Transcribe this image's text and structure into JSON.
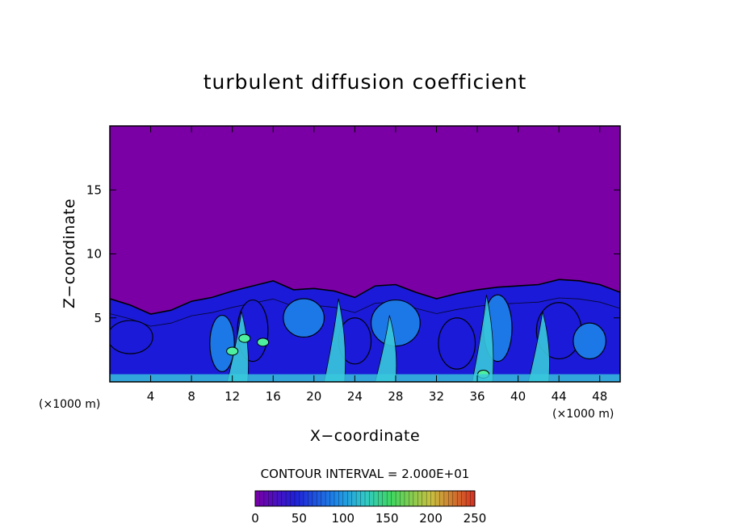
{
  "chart_data": {
    "type": "heatmap",
    "title": "turbulent diffusion coefficient",
    "xlabel": "X−coordinate",
    "ylabel": "Z−coordinate",
    "x_unit_left": "(×1000 m)",
    "x_unit_right": "(×1000 m)",
    "xlim": [
      0,
      50
    ],
    "ylim": [
      0,
      20
    ],
    "x_ticks": [
      4,
      8,
      12,
      16,
      20,
      24,
      28,
      32,
      36,
      40,
      44,
      48
    ],
    "y_ticks": [
      5,
      10,
      15
    ],
    "contour_label": "CONTOUR INTERVAL = 2.000E+01",
    "contour_interval": 20,
    "colorbar": {
      "min": 0,
      "max": 250,
      "ticks": [
        0,
        50,
        100,
        150,
        200,
        250
      ]
    },
    "background_value": 0,
    "turbulent_layer_top_profile": {
      "x": [
        0,
        2,
        4,
        6,
        8,
        10,
        12,
        14,
        16,
        18,
        20,
        22,
        24,
        26,
        28,
        30,
        32,
        34,
        36,
        38,
        40,
        42,
        44,
        46,
        48,
        50
      ],
      "z": [
        6.5,
        6.0,
        5.3,
        5.6,
        6.3,
        6.6,
        7.1,
        7.5,
        7.9,
        7.2,
        7.3,
        7.1,
        6.6,
        7.5,
        7.6,
        7.0,
        6.5,
        6.9,
        7.2,
        7.4,
        7.5,
        7.6,
        8.0,
        7.9,
        7.6,
        7.0
      ]
    },
    "colors": {
      "background": "#7a00a6",
      "low": "#1a1ad8",
      "mid": "#1e7ee8",
      "high": "#38c8dc",
      "peak": "#4ef0a0",
      "contour": "#000000"
    }
  }
}
